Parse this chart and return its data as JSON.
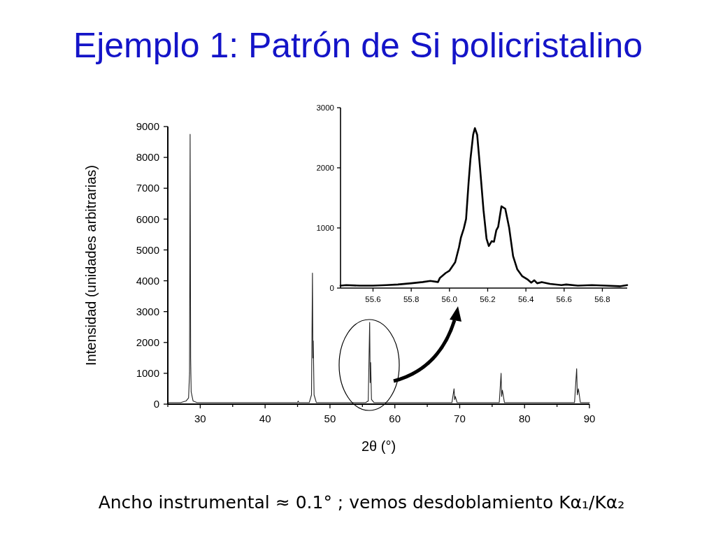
{
  "chart_data": [
    {
      "type": "line",
      "title": "Ejemplo 1: Patrón de Si policristalino",
      "xlabel": "2θ (°)",
      "ylabel": "Intensidad (unidades arbitrarias)",
      "annotations": [
        "Ancho instrumental ≈ 0.1° ; vemos desdoblamiento Kα₁/Kα₂"
      ],
      "xlim": [
        25,
        90
      ],
      "ylim": [
        0,
        9000
      ],
      "xticks": [
        {
          "value": 25,
          "label": null
        },
        30,
        {
          "value": 35,
          "label": null
        },
        40,
        {
          "value": 45,
          "label": null
        },
        50,
        {
          "value": 55,
          "label": null
        },
        60,
        {
          "value": 65,
          "label": null
        },
        70,
        {
          "value": 75,
          "label": null
        },
        80,
        {
          "value": 85,
          "label": null
        },
        90
      ],
      "yticks": [
        0,
        1000,
        2000,
        3000,
        4000,
        5000,
        6000,
        7000,
        8000,
        9000
      ],
      "series": [
        {
          "color": "#222222",
          "x": [
            25,
            26,
            27,
            27.8,
            28.2,
            28.35,
            28.44,
            28.52,
            28.6,
            28.9,
            29.5,
            32,
            36,
            40,
            44,
            45.0,
            45.1,
            45.2,
            46.8,
            47.15,
            47.3,
            47.37,
            47.42,
            47.55,
            47.9,
            50,
            55.5,
            55.9,
            56.12,
            56.2,
            56.27,
            56.4,
            56.8,
            60,
            64,
            68.8,
            69.13,
            69.22,
            69.32,
            69.6,
            72,
            76.1,
            76.38,
            76.46,
            76.58,
            76.9,
            80,
            87.7,
            88.03,
            88.13,
            88.3,
            88.6,
            90
          ],
          "values": [
            50,
            50,
            50,
            100,
            200,
            1000,
            8750,
            1500,
            400,
            100,
            50,
            50,
            50,
            50,
            50,
            50,
            100,
            50,
            50,
            300,
            4250,
            1500,
            2050,
            300,
            50,
            50,
            50,
            100,
            2650,
            700,
            1350,
            150,
            50,
            50,
            50,
            50,
            500,
            150,
            250,
            50,
            50,
            50,
            1000,
            250,
            450,
            50,
            50,
            50,
            1150,
            300,
            500,
            50,
            50
          ]
        }
      ]
    },
    {
      "type": "line",
      "xlim": [
        55.43,
        56.93
      ],
      "ylim": [
        0,
        3000
      ],
      "xticks": [
        55.6,
        55.8,
        {
          "value": 56,
          "label": "56.0"
        },
        56.2,
        56.4,
        56.6,
        56.8
      ],
      "yticks": [
        0,
        1000,
        2000,
        3000
      ],
      "series": [
        {
          "color": "#000000",
          "x": [
            55.43,
            55.46,
            55.53,
            55.6,
            55.67,
            55.73,
            55.8,
            55.86,
            55.9,
            55.94,
            55.95,
            55.98,
            56.0,
            56.03,
            56.05,
            56.06,
            56.075,
            56.087,
            56.1,
            56.11,
            56.124,
            56.133,
            56.145,
            56.16,
            56.178,
            56.194,
            56.206,
            56.221,
            56.233,
            56.245,
            56.255,
            56.272,
            56.292,
            56.312,
            56.333,
            56.355,
            56.38,
            56.41,
            56.428,
            56.444,
            56.459,
            56.483,
            56.526,
            56.586,
            56.611,
            56.672,
            56.745,
            56.818,
            56.891,
            56.93
          ],
          "values": [
            40,
            50,
            40,
            40,
            50,
            60,
            80,
            100,
            120,
            100,
            170,
            250,
            290,
            430,
            680,
            840,
            990,
            1150,
            1750,
            2150,
            2550,
            2660,
            2550,
            2000,
            1300,
            820,
            700,
            780,
            770,
            960,
            1020,
            1360,
            1320,
            1010,
            530,
            310,
            200,
            140,
            90,
            130,
            80,
            100,
            70,
            50,
            60,
            40,
            50,
            40,
            30,
            50
          ]
        }
      ]
    }
  ]
}
